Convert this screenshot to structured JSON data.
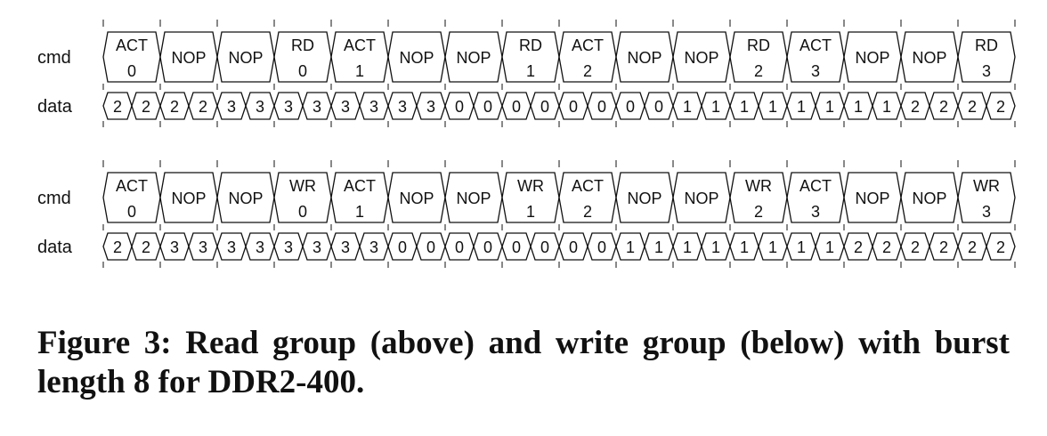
{
  "row_labels": {
    "cmd": "cmd",
    "data": "data"
  },
  "groups": [
    {
      "cmd": [
        [
          "ACT",
          "0"
        ],
        [
          "NOP",
          ""
        ],
        [
          "NOP",
          ""
        ],
        [
          "RD",
          "0"
        ],
        [
          "ACT",
          "1"
        ],
        [
          "NOP",
          ""
        ],
        [
          "NOP",
          ""
        ],
        [
          "RD",
          "1"
        ],
        [
          "ACT",
          "2"
        ],
        [
          "NOP",
          ""
        ],
        [
          "NOP",
          ""
        ],
        [
          "RD",
          "2"
        ],
        [
          "ACT",
          "3"
        ],
        [
          "NOP",
          ""
        ],
        [
          "NOP",
          ""
        ],
        [
          "RD",
          "3"
        ]
      ],
      "data": [
        "2",
        "2",
        "2",
        "2",
        "3",
        "3",
        "3",
        "3",
        "3",
        "3",
        "3",
        "3",
        "0",
        "0",
        "0",
        "0",
        "0",
        "0",
        "0",
        "0",
        "1",
        "1",
        "1",
        "1",
        "1",
        "1",
        "1",
        "1",
        "2",
        "2",
        "2",
        "2"
      ]
    },
    {
      "cmd": [
        [
          "ACT",
          "0"
        ],
        [
          "NOP",
          ""
        ],
        [
          "NOP",
          ""
        ],
        [
          "WR",
          "0"
        ],
        [
          "ACT",
          "1"
        ],
        [
          "NOP",
          ""
        ],
        [
          "NOP",
          ""
        ],
        [
          "WR",
          "1"
        ],
        [
          "ACT",
          "2"
        ],
        [
          "NOP",
          ""
        ],
        [
          "NOP",
          ""
        ],
        [
          "WR",
          "2"
        ],
        [
          "ACT",
          "3"
        ],
        [
          "NOP",
          ""
        ],
        [
          "NOP",
          ""
        ],
        [
          "WR",
          "3"
        ]
      ],
      "data": [
        "2",
        "2",
        "3",
        "3",
        "3",
        "3",
        "3",
        "3",
        "3",
        "3",
        "0",
        "0",
        "0",
        "0",
        "0",
        "0",
        "0",
        "0",
        "1",
        "1",
        "1",
        "1",
        "1",
        "1",
        "1",
        "1",
        "2",
        "2",
        "2",
        "2",
        "2",
        "2"
      ]
    }
  ],
  "caption": "Figure 3: Read group (above) and write group (below) with burst length 8 for DDR2-400."
}
